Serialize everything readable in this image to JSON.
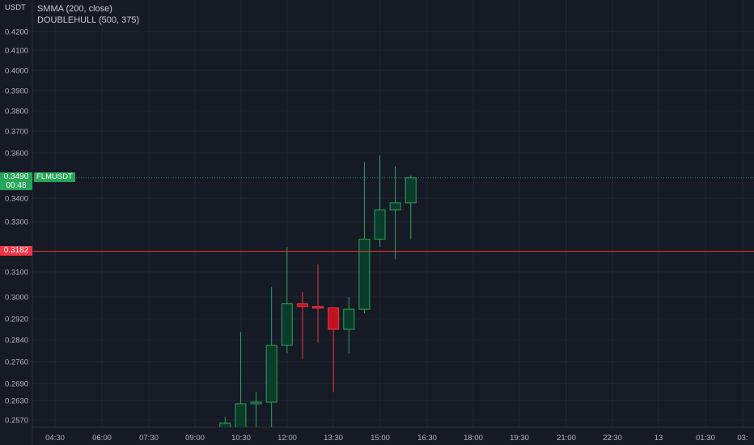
{
  "legend": {
    "line1": "SMMA (200, close)",
    "line2": "DOUBLEHULL (500, 375)"
  },
  "axis_unit": "USDT",
  "symbol": "FLMUSDT",
  "last_price": {
    "value": "0.3490",
    "countdown": "00:48",
    "color": "#26a659"
  },
  "alert_line": {
    "value": "0.3182",
    "color": "#f23645"
  },
  "colors": {
    "background": "#161a25",
    "grid": "#232733",
    "bull_fill": "#0b3b2a",
    "bull_border": "#26a659",
    "bear_fill": "#c1121f",
    "bear_border": "#f23645",
    "axis_text": "#b2b5be"
  },
  "chart_data": {
    "type": "candlestick",
    "title": "",
    "xlabel": "",
    "ylabel": "USDT",
    "y_ticks": [
      "0.4200",
      "0.4100",
      "0.4000",
      "0.3900",
      "0.3800",
      "0.3700",
      "0.3600",
      "0.3400",
      "0.3300",
      "0.3100",
      "0.3000",
      "0.2920",
      "0.2840",
      "0.2760",
      "0.2690",
      "0.2630",
      "0.2570"
    ],
    "x_ticks": [
      "04:30",
      "06:00",
      "07:30",
      "09:00",
      "10:30",
      "12:00",
      "13:30",
      "15:00",
      "16:30",
      "18:00",
      "19:30",
      "21:00",
      "22:30",
      "13",
      "01:30",
      "03:"
    ],
    "grid": true,
    "candles": [
      {
        "time": "10:00",
        "open": 0.254,
        "high": 0.258,
        "low": 0.252,
        "close": 0.256
      },
      {
        "time": "10:30",
        "open": 0.253,
        "high": 0.287,
        "low": 0.252,
        "close": 0.262
      },
      {
        "time": "11:00",
        "open": 0.262,
        "high": 0.266,
        "low": 0.253,
        "close": 0.2625
      },
      {
        "time": "11:30",
        "open": 0.2625,
        "high": 0.304,
        "low": 0.254,
        "close": 0.282
      },
      {
        "time": "12:00",
        "open": 0.282,
        "high": 0.32,
        "low": 0.279,
        "close": 0.2975
      },
      {
        "time": "12:30",
        "open": 0.2975,
        "high": 0.302,
        "low": 0.277,
        "close": 0.2965
      },
      {
        "time": "13:00",
        "open": 0.2965,
        "high": 0.313,
        "low": 0.283,
        "close": 0.296
      },
      {
        "time": "13:30",
        "open": 0.296,
        "high": 0.296,
        "low": 0.266,
        "close": 0.288
      },
      {
        "time": "14:00",
        "open": 0.288,
        "high": 0.3,
        "low": 0.279,
        "close": 0.2955
      },
      {
        "time": "14:30",
        "open": 0.2955,
        "high": 0.356,
        "low": 0.294,
        "close": 0.323
      },
      {
        "time": "15:00",
        "open": 0.323,
        "high": 0.359,
        "low": 0.32,
        "close": 0.335
      },
      {
        "time": "15:30",
        "open": 0.335,
        "high": 0.354,
        "low": 0.315,
        "close": 0.338
      },
      {
        "time": "16:00",
        "open": 0.338,
        "high": 0.35,
        "low": 0.323,
        "close": 0.349
      }
    ]
  }
}
